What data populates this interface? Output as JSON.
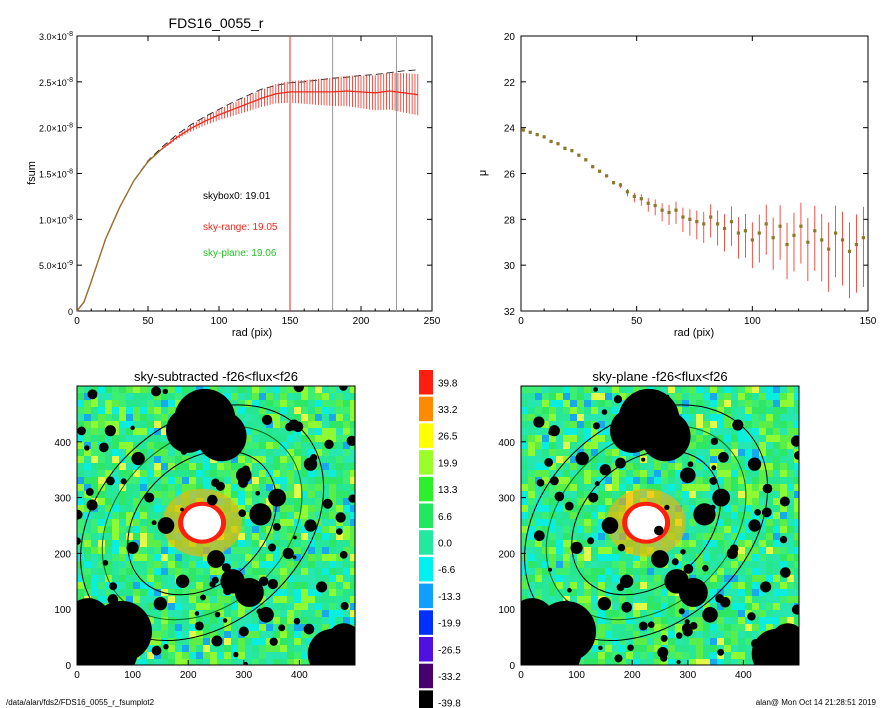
{
  "footer": {
    "path": "/data/alan/fds2/FDS16_0055_r_fsumplot2",
    "stamp": "alan@  Mon Oct 14 21:28:51 2019"
  },
  "colors": {
    "red": "#ee2a1c",
    "green": "#22c322",
    "grey": "#9a9a9a",
    "dash": "#222222",
    "olive": "#8a7a2a"
  },
  "chart_data": [
    {
      "type": "line",
      "title": "FDS16_0055_r",
      "xlabel": "rad (pix)",
      "ylabel": "fsum",
      "xlim": [
        0,
        250
      ],
      "ylim": [
        0,
        3e-08
      ],
      "x_ticks": [
        "0",
        "50",
        "100",
        "150",
        "200",
        "250"
      ],
      "y_ticks": [
        {
          "mant": "0",
          "exp": ""
        },
        {
          "mant": "5.0×10",
          "exp": "-9"
        },
        {
          "mant": "1.0×10",
          "exp": "-8"
        },
        {
          "mant": "1.5×10",
          "exp": "-8"
        },
        {
          "mant": "2.0×10",
          "exp": "-8"
        },
        {
          "mant": "2.5×10",
          "exp": "-8"
        },
        {
          "mant": "3.0×10",
          "exp": "-8"
        }
      ],
      "annotations": [
        "skybox0: 19.01",
        "sky-range: 19.05",
        "sky-plane: 19.06"
      ],
      "vlines": [
        {
          "x": 150,
          "color": "red"
        },
        {
          "x": 180,
          "color": "grey"
        },
        {
          "x": 225,
          "color": "grey"
        }
      ],
      "series": [
        {
          "style": "dashed",
          "x": [
            0,
            5,
            10,
            20,
            30,
            40,
            50,
            60,
            70,
            80,
            90,
            100,
            110,
            120,
            130,
            140,
            150,
            160,
            170,
            180,
            190,
            200,
            210,
            220,
            230,
            240
          ],
          "y": [
            0,
            1e-09,
            3.2e-09,
            7.8e-09,
            1.13e-08,
            1.42e-08,
            1.64e-08,
            1.79e-08,
            1.92e-08,
            2.03e-08,
            2.12e-08,
            2.2e-08,
            2.28e-08,
            2.35e-08,
            2.42e-08,
            2.46e-08,
            2.49e-08,
            2.5e-08,
            2.52e-08,
            2.54e-08,
            2.55e-08,
            2.57e-08,
            2.58e-08,
            2.6e-08,
            2.62e-08,
            2.63e-08
          ]
        },
        {
          "style": "red-errorbars",
          "x": [
            0,
            5,
            10,
            20,
            30,
            40,
            50,
            60,
            70,
            80,
            90,
            100,
            110,
            120,
            130,
            140,
            150,
            160,
            170,
            180,
            190,
            200,
            210,
            220,
            230,
            240
          ],
          "y": [
            0,
            1e-09,
            3.2e-09,
            7.8e-09,
            1.13e-08,
            1.42e-08,
            1.63e-08,
            1.77e-08,
            1.89e-08,
            1.99e-08,
            2.07e-08,
            2.14e-08,
            2.2e-08,
            2.26e-08,
            2.32e-08,
            2.37e-08,
            2.39e-08,
            2.39e-08,
            2.39e-08,
            2.39e-08,
            2.4e-08,
            2.39e-08,
            2.38e-08,
            2.4e-08,
            2.38e-08,
            2.36e-08
          ]
        }
      ]
    },
    {
      "type": "scatter",
      "title": "",
      "xlabel": "rad (pix)",
      "ylabel": "μ",
      "xlim": [
        0,
        150
      ],
      "ylim": [
        32,
        20
      ],
      "x_ticks": [
        "0",
        "50",
        "100",
        "150"
      ],
      "y_ticks": [
        "20",
        "22",
        "24",
        "26",
        "28",
        "30",
        "32"
      ],
      "points": {
        "x": [
          1,
          4,
          7,
          10,
          13,
          16,
          19,
          22,
          25,
          28,
          31,
          34,
          37,
          40,
          43,
          46,
          49,
          52,
          55,
          58,
          61,
          64,
          67,
          70,
          73,
          76,
          79,
          82,
          85,
          88,
          91,
          94,
          97,
          100,
          103,
          106,
          109,
          112,
          115,
          118,
          121,
          124,
          127,
          130,
          133,
          136,
          139,
          142,
          145,
          148
        ],
        "y": [
          24.1,
          24.2,
          24.3,
          24.4,
          24.6,
          24.7,
          24.9,
          25.0,
          25.2,
          25.4,
          25.7,
          25.9,
          26.1,
          26.4,
          26.5,
          26.8,
          27.0,
          27.1,
          27.3,
          27.4,
          27.6,
          27.7,
          27.6,
          27.9,
          28.0,
          28.1,
          28.2,
          27.9,
          28.2,
          28.4,
          28.1,
          28.6,
          28.5,
          28.9,
          28.6,
          28.2,
          28.8,
          28.3,
          29.1,
          28.7,
          28.3,
          29.0,
          28.5,
          28.9,
          29.3,
          28.6,
          28.9,
          29.4,
          29.1,
          28.8
        ]
      }
    },
    {
      "type": "heatmap",
      "title": "sky-subtracted -f26<flux<f26",
      "xlim": [
        0,
        500
      ],
      "ylim": [
        0,
        500
      ],
      "x_ticks": [
        "0",
        "100",
        "200",
        "300",
        "400"
      ],
      "y_ticks": [
        "0",
        "100",
        "200",
        "300",
        "400"
      ]
    },
    {
      "type": "heatmap",
      "title": "sky-plane -f26<flux<f26",
      "xlim": [
        0,
        500
      ],
      "ylim": [
        0,
        500
      ],
      "x_ticks": [
        "0",
        "100",
        "200",
        "300",
        "400"
      ],
      "y_ticks": [
        "0",
        "100",
        "200",
        "300",
        "400"
      ]
    },
    {
      "type": "colorbar",
      "labels": [
        "39.8",
        "33.2",
        "26.5",
        "19.9",
        "13.3",
        "6.6",
        "0.0",
        "-6.6",
        "-13.3",
        "-19.9",
        "-26.5",
        "-33.2",
        "-39.8"
      ],
      "colors": [
        "#ff1e10",
        "#ff8a00",
        "#ffff00",
        "#9aff28",
        "#2cf02c",
        "#22e860",
        "#22e8a0",
        "#00f0f0",
        "#10a0ff",
        "#0030ff",
        "#5010e0",
        "#480070",
        "#000000"
      ]
    }
  ]
}
